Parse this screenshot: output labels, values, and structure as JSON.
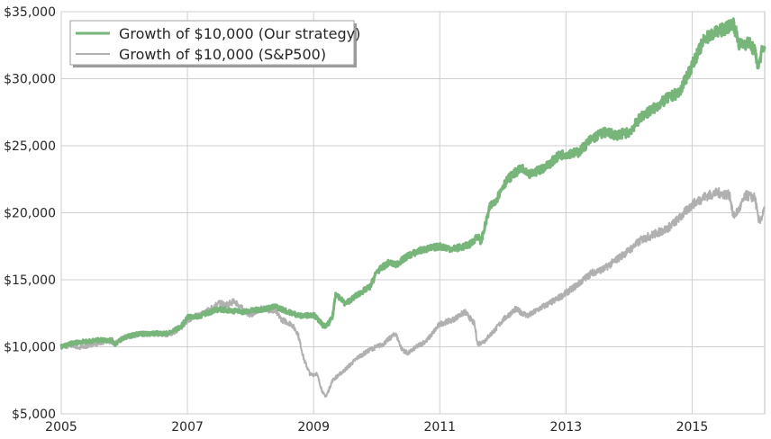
{
  "chart_data": {
    "type": "line",
    "title": "",
    "xlabel": "",
    "ylabel": "",
    "xlim": [
      2005.0,
      2016.15
    ],
    "ylim": [
      5000,
      35000
    ],
    "x_ticks": [
      2005,
      2007,
      2009,
      2011,
      2013,
      2015
    ],
    "x_tick_labels": [
      "2005",
      "2007",
      "2009",
      "2011",
      "2013",
      "2015"
    ],
    "y_ticks": [
      5000,
      10000,
      15000,
      20000,
      25000,
      30000,
      35000
    ],
    "y_tick_labels": [
      "$5,000",
      "$10,000",
      "$15,000",
      "$20,000",
      "$25,000",
      "$30,000",
      "$35,000"
    ],
    "grid": true,
    "legend_position": "top-left",
    "series": [
      {
        "name": "Growth of $10,000 (Our strategy)",
        "color": "#77b57b",
        "points": [
          [
            2005.0,
            10000
          ],
          [
            2005.2,
            10300
          ],
          [
            2005.4,
            10400
          ],
          [
            2005.6,
            10500
          ],
          [
            2005.8,
            10500
          ],
          [
            2005.85,
            10200
          ],
          [
            2006.0,
            10700
          ],
          [
            2006.2,
            10950
          ],
          [
            2006.5,
            11000
          ],
          [
            2006.7,
            11000
          ],
          [
            2006.9,
            11500
          ],
          [
            2007.0,
            12200
          ],
          [
            2007.2,
            12300
          ],
          [
            2007.3,
            12500
          ],
          [
            2007.5,
            12800
          ],
          [
            2007.7,
            12700
          ],
          [
            2007.9,
            12600
          ],
          [
            2008.0,
            12700
          ],
          [
            2008.2,
            12800
          ],
          [
            2008.4,
            13000
          ],
          [
            2008.6,
            12600
          ],
          [
            2008.8,
            12300
          ],
          [
            2009.0,
            12400
          ],
          [
            2009.15,
            11600
          ],
          [
            2009.2,
            11500
          ],
          [
            2009.3,
            12200
          ],
          [
            2009.35,
            14000
          ],
          [
            2009.5,
            13200
          ],
          [
            2009.7,
            13900
          ],
          [
            2009.9,
            14500
          ],
          [
            2010.0,
            15600
          ],
          [
            2010.2,
            16300
          ],
          [
            2010.3,
            16100
          ],
          [
            2010.5,
            16800
          ],
          [
            2010.7,
            17200
          ],
          [
            2010.9,
            17400
          ],
          [
            2011.0,
            17500
          ],
          [
            2011.2,
            17300
          ],
          [
            2011.4,
            17500
          ],
          [
            2011.5,
            17700
          ],
          [
            2011.6,
            18300
          ],
          [
            2011.65,
            17800
          ],
          [
            2011.8,
            20500
          ],
          [
            2011.9,
            21000
          ],
          [
            2012.0,
            22000
          ],
          [
            2012.1,
            22600
          ],
          [
            2012.2,
            23000
          ],
          [
            2012.3,
            23300
          ],
          [
            2012.4,
            22800
          ],
          [
            2012.5,
            23000
          ],
          [
            2012.7,
            23500
          ],
          [
            2012.9,
            24300
          ],
          [
            2013.0,
            24400
          ],
          [
            2013.2,
            24500
          ],
          [
            2013.4,
            25500
          ],
          [
            2013.6,
            26000
          ],
          [
            2013.8,
            25800
          ],
          [
            2014.0,
            26000
          ],
          [
            2014.2,
            27200
          ],
          [
            2014.4,
            27800
          ],
          [
            2014.6,
            28500
          ],
          [
            2014.8,
            29000
          ],
          [
            2014.95,
            30500
          ],
          [
            2015.1,
            32000
          ],
          [
            2015.2,
            33000
          ],
          [
            2015.4,
            33500
          ],
          [
            2015.55,
            33800
          ],
          [
            2015.65,
            34200
          ],
          [
            2015.75,
            32500
          ],
          [
            2015.9,
            32700
          ],
          [
            2016.0,
            32000
          ],
          [
            2016.05,
            30800
          ],
          [
            2016.1,
            32000
          ],
          [
            2016.15,
            32200
          ]
        ]
      },
      {
        "name": "Growth of $10,000 (S&P500)",
        "color": "#b0b0b0",
        "points": [
          [
            2005.0,
            10000
          ],
          [
            2005.2,
            10100
          ],
          [
            2005.3,
            9900
          ],
          [
            2005.5,
            10200
          ],
          [
            2005.7,
            10400
          ],
          [
            2005.85,
            10300
          ],
          [
            2006.0,
            10700
          ],
          [
            2006.2,
            10900
          ],
          [
            2006.5,
            11000
          ],
          [
            2006.7,
            10900
          ],
          [
            2006.9,
            11400
          ],
          [
            2007.0,
            12000
          ],
          [
            2007.2,
            12400
          ],
          [
            2007.35,
            12800
          ],
          [
            2007.5,
            13300
          ],
          [
            2007.6,
            13100
          ],
          [
            2007.75,
            13400
          ],
          [
            2007.9,
            12700
          ],
          [
            2008.0,
            12400
          ],
          [
            2008.2,
            12900
          ],
          [
            2008.4,
            12600
          ],
          [
            2008.5,
            12000
          ],
          [
            2008.65,
            11700
          ],
          [
            2008.75,
            11000
          ],
          [
            2008.85,
            9000
          ],
          [
            2008.95,
            7900
          ],
          [
            2009.05,
            8000
          ],
          [
            2009.15,
            6500
          ],
          [
            2009.2,
            6300
          ],
          [
            2009.3,
            7500
          ],
          [
            2009.5,
            8300
          ],
          [
            2009.7,
            9200
          ],
          [
            2009.9,
            9800
          ],
          [
            2010.1,
            10200
          ],
          [
            2010.3,
            11000
          ],
          [
            2010.4,
            9800
          ],
          [
            2010.5,
            9500
          ],
          [
            2010.6,
            9900
          ],
          [
            2010.8,
            10500
          ],
          [
            2011.0,
            11700
          ],
          [
            2011.2,
            12000
          ],
          [
            2011.4,
            12600
          ],
          [
            2011.55,
            11700
          ],
          [
            2011.6,
            10200
          ],
          [
            2011.7,
            10400
          ],
          [
            2011.9,
            11400
          ],
          [
            2012.0,
            12000
          ],
          [
            2012.2,
            12800
          ],
          [
            2012.4,
            12300
          ],
          [
            2012.6,
            12900
          ],
          [
            2012.8,
            13400
          ],
          [
            2013.0,
            14000
          ],
          [
            2013.2,
            14700
          ],
          [
            2013.4,
            15500
          ],
          [
            2013.6,
            15800
          ],
          [
            2013.8,
            16500
          ],
          [
            2014.0,
            17200
          ],
          [
            2014.2,
            18000
          ],
          [
            2014.4,
            18400
          ],
          [
            2014.6,
            18800
          ],
          [
            2014.8,
            19600
          ],
          [
            2015.0,
            20600
          ],
          [
            2015.2,
            21200
          ],
          [
            2015.4,
            21500
          ],
          [
            2015.6,
            21300
          ],
          [
            2015.65,
            19700
          ],
          [
            2015.75,
            20300
          ],
          [
            2015.85,
            21300
          ],
          [
            2016.0,
            21100
          ],
          [
            2016.05,
            19400
          ],
          [
            2016.1,
            19600
          ],
          [
            2016.15,
            20300
          ]
        ]
      }
    ]
  }
}
